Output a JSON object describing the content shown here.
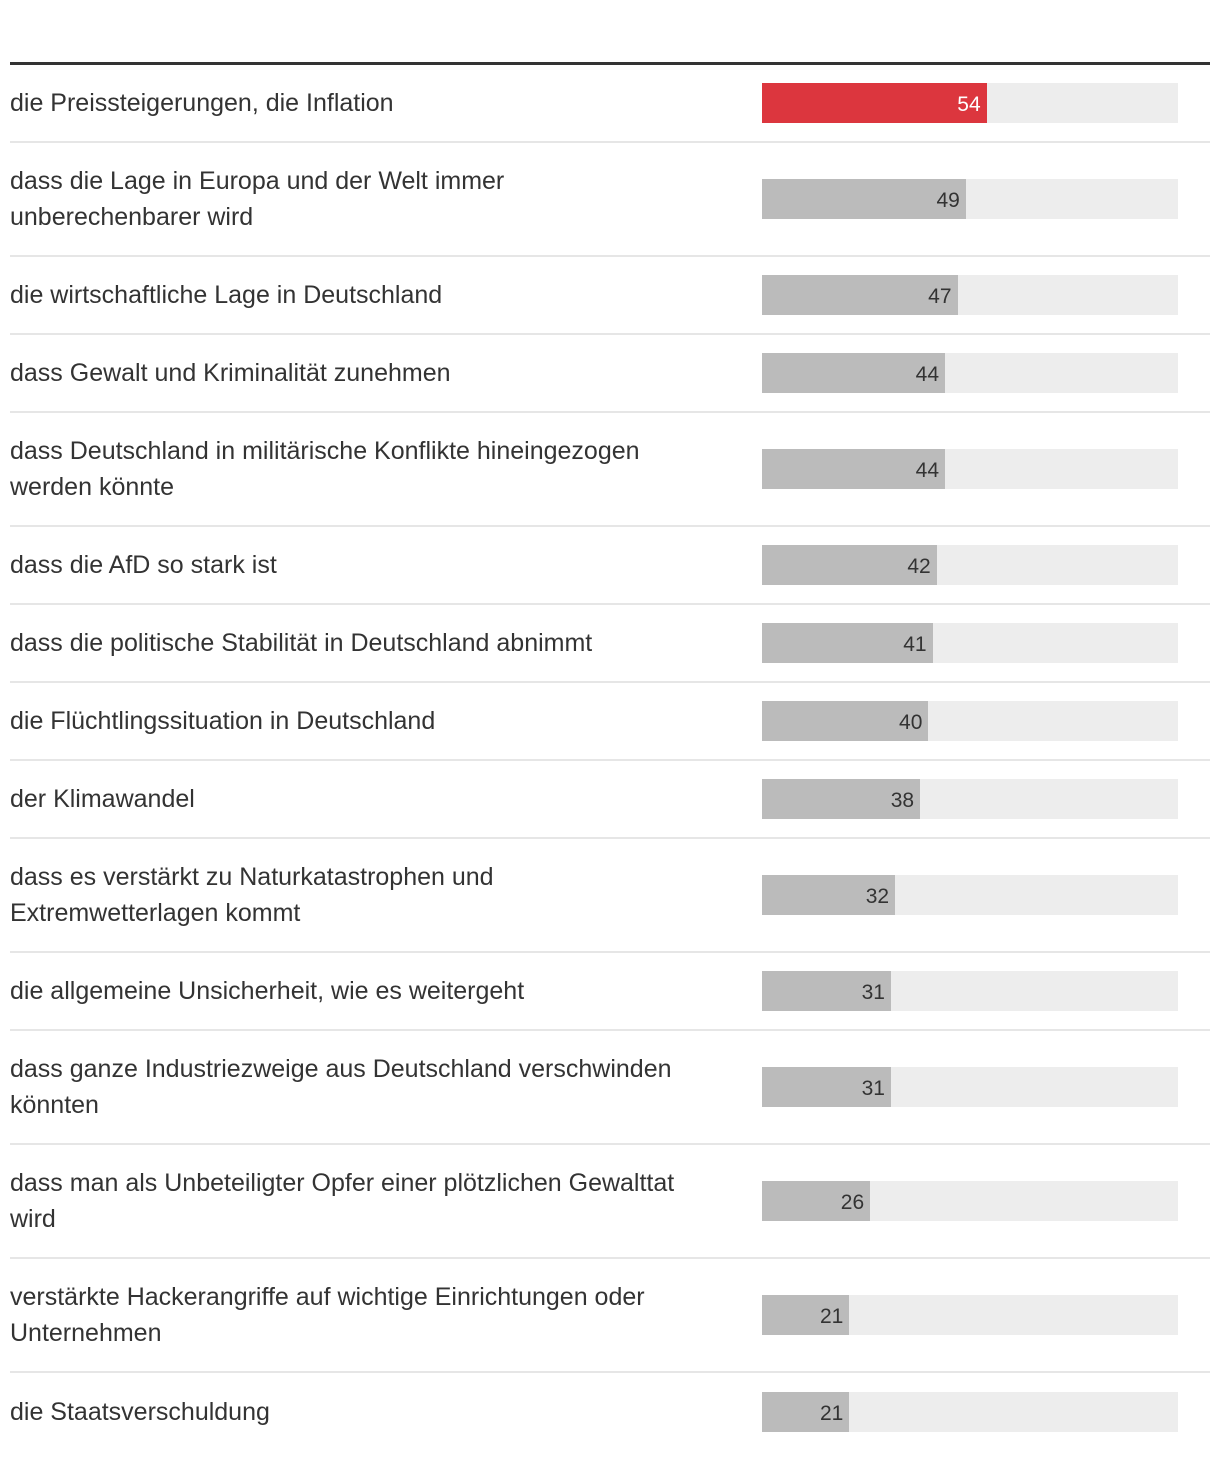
{
  "colors": {
    "highlight": "#dc363e",
    "bar": "#bbbbbb",
    "track": "#ededed",
    "text": "#333333"
  },
  "chart_data": {
    "type": "bar",
    "orientation": "horizontal",
    "xlim": [
      0,
      100
    ],
    "highlight_index": 0,
    "categories": [
      "die Preissteigerungen, die Inflation",
      "dass die Lage in Europa und der Welt immer unberechenbarer wird",
      "die wirtschaftliche Lage in Deutschland",
      "dass Gewalt und Kriminalität zunehmen",
      "dass Deutschland in militärische Konflikte hineingezogen werden könnte",
      "dass die AfD so stark ist",
      "dass die politische Stabilität in Deutschland abnimmt",
      "die Flüchtlingssituation in Deutschland",
      "der Klimawandel",
      "dass es verstärkt zu Naturkatastrophen und Extremwetterlagen kommt",
      "die allgemeine Unsicherheit, wie es weitergeht",
      "dass ganze Industriezweige aus Deutschland verschwinden könnten",
      "dass man als Unbeteiligter Opfer einer plötzlichen Gewalttat wird",
      "verstärkte Hackerangriffe auf wichtige Einrichtungen oder Unternehmen",
      "die Staatsverschuldung"
    ],
    "values": [
      54,
      49,
      47,
      44,
      44,
      42,
      41,
      40,
      38,
      32,
      31,
      31,
      26,
      21,
      21
    ]
  }
}
